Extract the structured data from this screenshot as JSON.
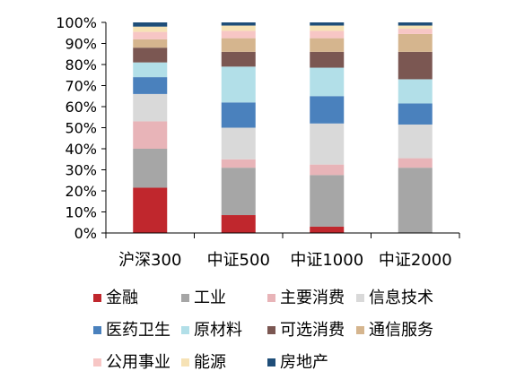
{
  "chart_data": {
    "type": "bar",
    "stacked": true,
    "normalized": true,
    "categories": [
      "沪深300",
      "中证500",
      "中证1000",
      "中证2000"
    ],
    "ylim": [
      0,
      100
    ],
    "y_ticks": [
      "0%",
      "10%",
      "20%",
      "30%",
      "40%",
      "50%",
      "60%",
      "70%",
      "80%",
      "90%",
      "100%"
    ],
    "y_tick_values": [
      0,
      10,
      20,
      30,
      40,
      50,
      60,
      70,
      80,
      90,
      100
    ],
    "legend_position": "bottom",
    "grid": false,
    "series": [
      {
        "name": "金融",
        "color": "#C0272D",
        "values": [
          21.5,
          8.5,
          3.0,
          0.0
        ]
      },
      {
        "name": "工业",
        "color": "#A6A6A6",
        "values": [
          18.5,
          22.5,
          24.5,
          31.0
        ]
      },
      {
        "name": "主要消费",
        "color": "#E8B4B8",
        "values": [
          13.0,
          4.0,
          5.0,
          4.5
        ]
      },
      {
        "name": "信息技术",
        "color": "#D9D9D9",
        "values": [
          13.0,
          15.0,
          19.5,
          16.0
        ]
      },
      {
        "name": "医药卫生",
        "color": "#4A81BD",
        "values": [
          8.0,
          12.0,
          13.0,
          10.0
        ]
      },
      {
        "name": "原材料",
        "color": "#B2DFE8",
        "values": [
          7.0,
          17.0,
          13.5,
          11.5
        ]
      },
      {
        "name": "可选消费",
        "color": "#7B5752",
        "values": [
          7.0,
          7.0,
          7.5,
          13.0
        ]
      },
      {
        "name": "通信服务",
        "color": "#D5B58E",
        "values": [
          4.0,
          6.5,
          6.5,
          8.5
        ]
      },
      {
        "name": "公用事业",
        "color": "#F7C6C5",
        "values": [
          3.5,
          3.5,
          3.5,
          2.5
        ]
      },
      {
        "name": "能源",
        "color": "#F6E2B5",
        "values": [
          2.5,
          2.5,
          2.5,
          1.5
        ]
      },
      {
        "name": "房地产",
        "color": "#1F4E79",
        "values": [
          2.0,
          1.5,
          1.5,
          1.5
        ]
      }
    ]
  }
}
